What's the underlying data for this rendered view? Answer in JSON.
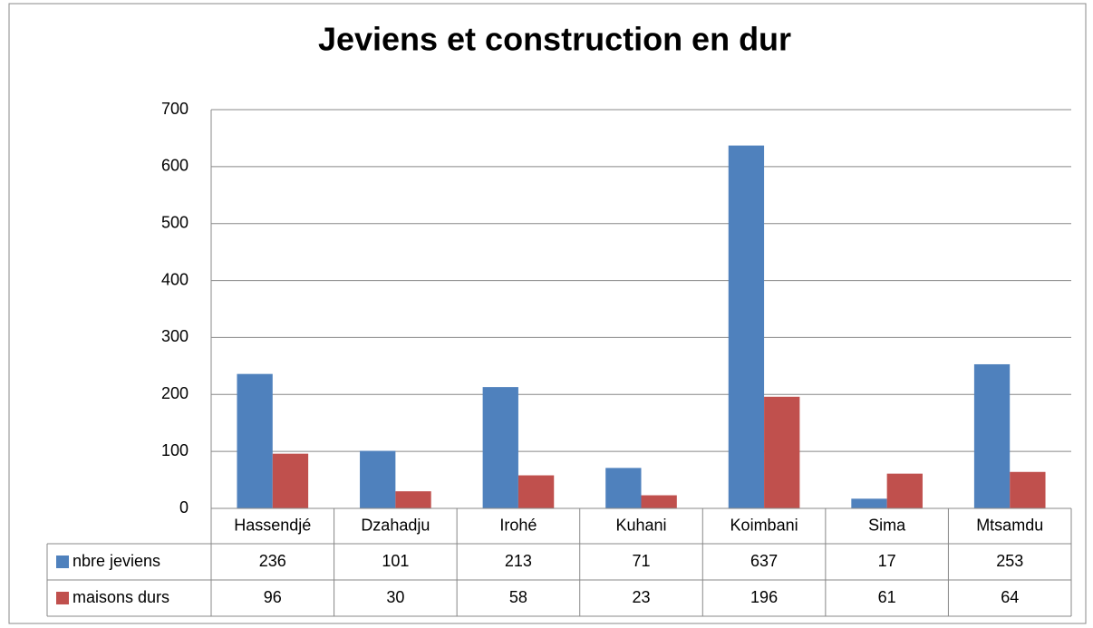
{
  "chart_data": {
    "type": "bar",
    "title": "Jeviens et construction en dur",
    "categories": [
      "Hassendjé",
      "Dzahadju",
      "Irohé",
      "Kuhani",
      "Koimbani",
      "Sima",
      "Mtsamdu"
    ],
    "series": [
      {
        "name": "nbre jeviens",
        "color": "#4f81bd",
        "values": [
          236,
          101,
          213,
          71,
          637,
          17,
          253
        ]
      },
      {
        "name": "maisons durs",
        "color": "#c0504d",
        "values": [
          96,
          30,
          58,
          23,
          196,
          61,
          64
        ]
      }
    ],
    "ylim": [
      0,
      700
    ],
    "yticks": [
      0,
      100,
      200,
      300,
      400,
      500,
      600,
      700
    ],
    "grid": true
  }
}
